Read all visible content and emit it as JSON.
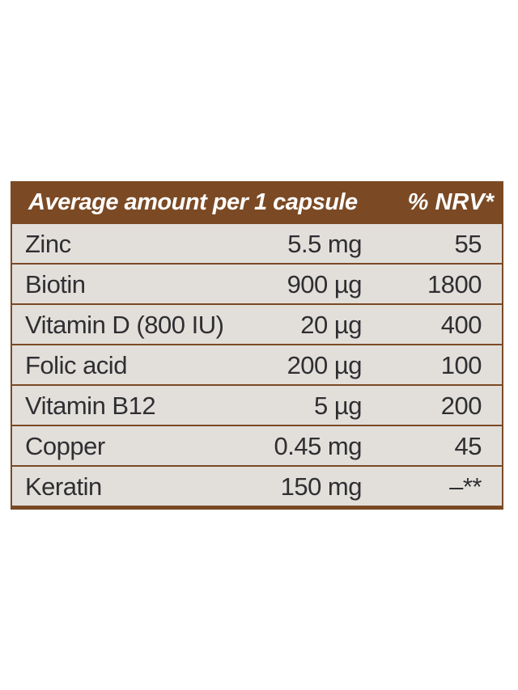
{
  "table": {
    "header": {
      "name": "Average amount per 1 capsule",
      "nrv": "% NRV*"
    },
    "rows": [
      {
        "name": "Zinc",
        "amount": "5.5 mg",
        "nrv": "55"
      },
      {
        "name": "Biotin",
        "amount": "900 µg",
        "nrv": "1800"
      },
      {
        "name": "Vitamin D (800 IU)",
        "amount": "20 µg",
        "nrv": "400"
      },
      {
        "name": "Folic acid",
        "amount": "200 µg",
        "nrv": "100"
      },
      {
        "name": "Vitamin B12",
        "amount": "5 µg",
        "nrv": "200"
      },
      {
        "name": "Copper",
        "amount": "0.45 mg",
        "nrv": "45"
      },
      {
        "name": "Keratin",
        "amount": "150 mg",
        "nrv": "–**"
      }
    ]
  },
  "colors": {
    "header_bg": "#7b4a24",
    "row_bg": "#e2dfdb",
    "text": "#2f2f32"
  }
}
